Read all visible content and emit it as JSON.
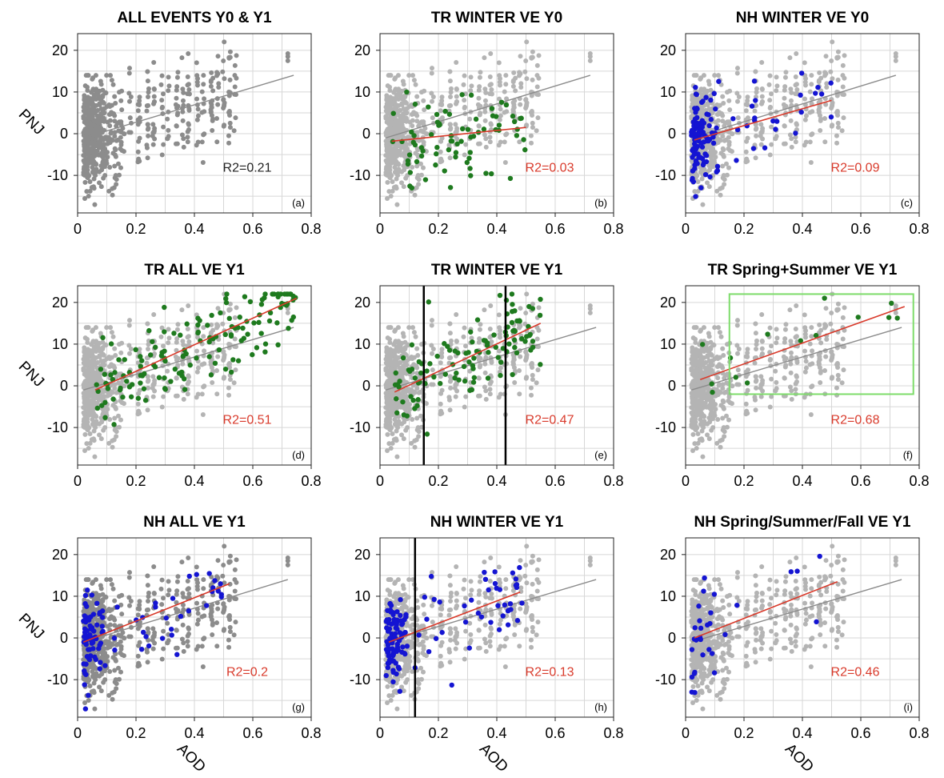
{
  "figure": {
    "colors": {
      "all_points": "#8c8c8c",
      "background_points": "#b4b4b4",
      "tr_points": "#1e7a1e",
      "nh_points": "#1414d2",
      "all_fit": "#8c8c8c",
      "subset_fit": "#d93a2b",
      "grid": "#d7d7d7",
      "box": "#7ddc6a",
      "vline": "#000000"
    }
  },
  "chart_data": [
    {
      "id": "a",
      "type": "scatter",
      "title": "ALL EVENTS Y0 & Y1",
      "panel_label": "(a)",
      "r2": "R2=0.21",
      "r2_color": "#222222",
      "xlabel": "",
      "ylabel": "PNJ",
      "xlim": [
        0,
        0.8
      ],
      "ylim": [
        -19,
        24
      ],
      "xticks": [
        "0",
        "0.2",
        "0.4",
        "0.6",
        "0.8"
      ],
      "yticks": [
        "-10",
        "0",
        "10",
        "20"
      ],
      "grid": true,
      "subset": "none",
      "fit_all": {
        "x": [
          0.02,
          0.74
        ],
        "y": [
          -1.0,
          14.0
        ]
      }
    },
    {
      "id": "b",
      "type": "scatter",
      "title": "TR WINTER VE Y0",
      "panel_label": "(b)",
      "r2": "R2=0.03",
      "r2_color": "#d93a2b",
      "xlabel": "",
      "ylabel": "",
      "xlim": [
        0,
        0.8
      ],
      "ylim": [
        -19,
        24
      ],
      "xticks": [
        "0",
        "0.2",
        "0.4",
        "0.6",
        "0.8"
      ],
      "yticks": [
        "-10",
        "0",
        "10",
        "20"
      ],
      "grid": true,
      "subset": "TR",
      "fit_all": {
        "x": [
          0.02,
          0.72
        ],
        "y": [
          -1.0,
          14.0
        ]
      },
      "fit_subset": {
        "x": [
          0.04,
          0.5
        ],
        "y": [
          -1.8,
          1.5
        ]
      },
      "subset_n": 75,
      "subset_xrange": [
        0.03,
        0.5
      ]
    },
    {
      "id": "c",
      "type": "scatter",
      "title": "NH WINTER VE Y0",
      "panel_label": "(c)",
      "r2": "R2=0.09",
      "r2_color": "#d93a2b",
      "xlabel": "",
      "ylabel": "",
      "xlim": [
        0,
        0.8
      ],
      "ylim": [
        -19,
        24
      ],
      "xticks": [
        "0",
        "0.2",
        "0.4",
        "0.6",
        "0.8"
      ],
      "yticks": [
        "-10",
        "0",
        "10",
        "20"
      ],
      "grid": true,
      "subset": "NH",
      "fit_all": {
        "x": [
          0.02,
          0.72
        ],
        "y": [
          -1.0,
          14.0
        ]
      },
      "fit_subset": {
        "x": [
          0.03,
          0.5
        ],
        "y": [
          -1.5,
          8.0
        ]
      },
      "subset_n": 130,
      "subset_xrange": [
        0.02,
        0.5
      ]
    },
    {
      "id": "d",
      "type": "scatter",
      "title": "TR ALL VE Y1",
      "panel_label": "(d)",
      "r2": "R2=0.51",
      "r2_color": "#d93a2b",
      "xlabel": "",
      "ylabel": "PNJ",
      "xlim": [
        0,
        0.8
      ],
      "ylim": [
        -19,
        24
      ],
      "xticks": [
        "0",
        "0.2",
        "0.4",
        "0.6",
        "0.8"
      ],
      "yticks": [
        "-10",
        "0",
        "10",
        "20"
      ],
      "grid": true,
      "subset": "TR",
      "fit_all": {
        "x": [
          0.02,
          0.74
        ],
        "y": [
          -1.0,
          14.0
        ]
      },
      "fit_subset": {
        "x": [
          0.06,
          0.75
        ],
        "y": [
          -1.0,
          21.0
        ]
      },
      "subset_n": 150,
      "subset_xrange": [
        0.05,
        0.75
      ]
    },
    {
      "id": "e",
      "type": "scatter",
      "title": "TR WINTER VE Y1",
      "panel_label": "(e)",
      "r2": "R2=0.47",
      "r2_color": "#d93a2b",
      "xlabel": "",
      "ylabel": "",
      "xlim": [
        0,
        0.8
      ],
      "ylim": [
        -19,
        24
      ],
      "xticks": [
        "0",
        "0.2",
        "0.4",
        "0.6",
        "0.8"
      ],
      "yticks": [
        "-10",
        "0",
        "10",
        "20"
      ],
      "grid": true,
      "subset": "TR",
      "fit_all": {
        "x": [
          0.02,
          0.74
        ],
        "y": [
          -1.0,
          14.0
        ]
      },
      "fit_subset": {
        "x": [
          0.05,
          0.55
        ],
        "y": [
          -1.5,
          15.0
        ]
      },
      "subset_n": 110,
      "subset_xrange": [
        0.05,
        0.55
      ],
      "vlines": [
        0.15,
        0.43
      ]
    },
    {
      "id": "f",
      "type": "scatter",
      "title": "TR Spring+Summer VE Y1",
      "panel_label": "(f)",
      "r2": "R2=0.68",
      "r2_color": "#d93a2b",
      "xlabel": "",
      "ylabel": "",
      "xlim": [
        0,
        0.8
      ],
      "ylim": [
        -19,
        24
      ],
      "xticks": [
        "0",
        "0.2",
        "0.4",
        "0.6",
        "0.8"
      ],
      "yticks": [
        "-10",
        "0",
        "10",
        "20"
      ],
      "grid": true,
      "subset": "TR",
      "fit_all": {
        "x": [
          0.02,
          0.74
        ],
        "y": [
          -1.0,
          14.0
        ]
      },
      "fit_subset": {
        "x": [
          0.05,
          0.75
        ],
        "y": [
          1.5,
          19.0
        ]
      },
      "subset_n": 14,
      "subset_xrange": [
        0.05,
        0.75
      ],
      "box": {
        "x": [
          0.15,
          0.78
        ],
        "y": [
          -2,
          22
        ]
      }
    },
    {
      "id": "g",
      "type": "scatter",
      "title": "NH ALL VE Y1",
      "panel_label": "(g)",
      "r2": "R2=0.2",
      "r2_color": "#d93a2b",
      "xlabel": "AOD",
      "ylabel": "PNJ",
      "xlim": [
        0,
        0.8
      ],
      "ylim": [
        -19,
        24
      ],
      "xticks": [
        "0",
        "0.2",
        "0.4",
        "0.6",
        "0.8"
      ],
      "yticks": [
        "-10",
        "0",
        "10",
        "20"
      ],
      "grid": true,
      "subset": "NH",
      "fit_all": {
        "x": [
          0.02,
          0.72
        ],
        "y": [
          -1.0,
          14.0
        ]
      },
      "fit_subset": {
        "x": [
          0.02,
          0.52
        ],
        "y": [
          -1.0,
          13.0
        ]
      },
      "subset_n": 100,
      "subset_xrange": [
        0.02,
        0.52
      ]
    },
    {
      "id": "h",
      "type": "scatter",
      "title": "NH WINTER VE Y1",
      "panel_label": "(h)",
      "r2": "R2=0.13",
      "r2_color": "#d93a2b",
      "xlabel": "AOD",
      "ylabel": "",
      "xlim": [
        0,
        0.8
      ],
      "ylim": [
        -19,
        24
      ],
      "xticks": [
        "0",
        "0.2",
        "0.4",
        "0.6",
        "0.8"
      ],
      "yticks": [
        "-10",
        "0",
        "10",
        "20"
      ],
      "grid": true,
      "subset": "NH",
      "fit_all": {
        "x": [
          0.02,
          0.74
        ],
        "y": [
          -1.0,
          14.0
        ]
      },
      "fit_subset": {
        "x": [
          0.03,
          0.48
        ],
        "y": [
          -1.0,
          11.0
        ]
      },
      "subset_n": 140,
      "subset_xrange": [
        0.02,
        0.5
      ],
      "vlines": [
        0.12
      ]
    },
    {
      "id": "i",
      "type": "scatter",
      "title": "NH Spring/Summer/Fall VE Y1",
      "panel_label": "(i)",
      "r2": "R2=0.46",
      "r2_color": "#d93a2b",
      "xlabel": "AOD",
      "ylabel": "",
      "xlim": [
        0,
        0.8
      ],
      "ylim": [
        -19,
        24
      ],
      "xticks": [
        "0",
        "0.2",
        "0.4",
        "0.6",
        "0.8"
      ],
      "yticks": [
        "-10",
        "0",
        "10",
        "20"
      ],
      "grid": true,
      "subset": "NH",
      "fit_all": {
        "x": [
          0.02,
          0.74
        ],
        "y": [
          -1.0,
          14.0
        ]
      },
      "fit_subset": {
        "x": [
          0.03,
          0.52
        ],
        "y": [
          0.0,
          13.5
        ]
      },
      "subset_n": 30,
      "subset_xrange": [
        0.02,
        0.52
      ]
    }
  ]
}
